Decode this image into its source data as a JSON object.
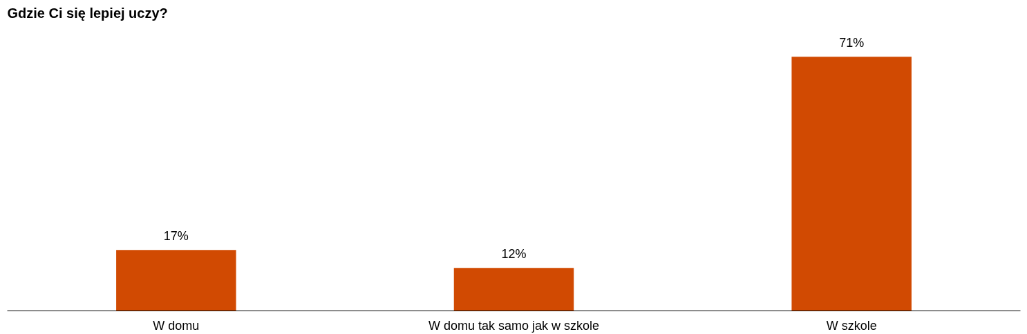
{
  "chart_data": {
    "type": "bar",
    "title": "Gdzie Ci się lepiej uczy?",
    "categories": [
      "W domu",
      "W domu tak samo jak w szkole",
      "W szkole"
    ],
    "values": [
      17,
      12,
      71
    ],
    "color": "#d14a02",
    "data_labels": true,
    "value_labels": [
      "17%",
      "12%",
      "71%"
    ],
    "grid": false
  }
}
